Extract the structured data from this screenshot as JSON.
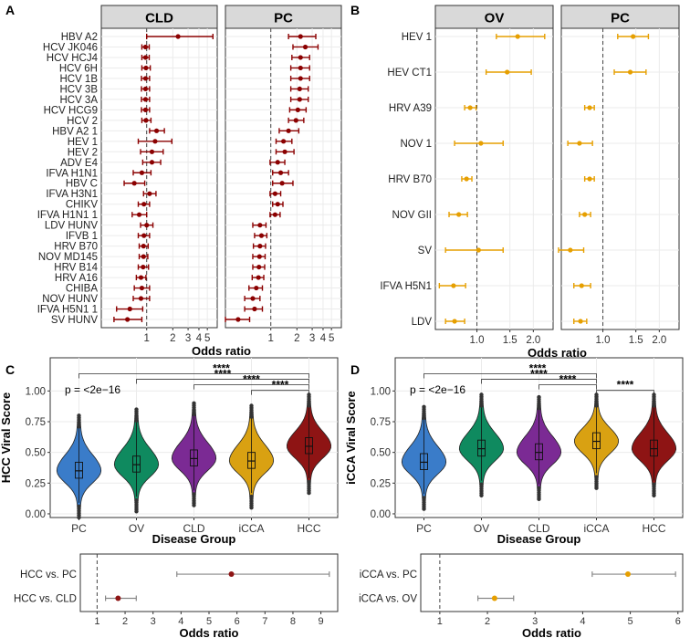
{
  "panel_labels": {
    "A": "A",
    "B": "B",
    "C": "C",
    "D": "D"
  },
  "colors": {
    "dark_red": "#8B0000",
    "orange": "#E69F00",
    "pc_blue": "#3A7CC9",
    "ov_green": "#0F8A5F",
    "cld_purple": "#7B2A94",
    "icca_orange": "#D9A112",
    "hcc_red": "#8E1414"
  },
  "chart_data": [
    {
      "id": "A",
      "type": "scatter",
      "subtype": "forest",
      "xlabel": "Odds ratio",
      "xscale": "log",
      "xlim": [
        0.3,
        6.5
      ],
      "xticks": [
        1,
        2,
        3,
        4,
        5
      ],
      "reference": 1,
      "labels": [
        "HBV A2",
        "HCV JK046",
        "HCV HCJ4",
        "HCV 6H",
        "HCV 1B",
        "HCV 3B",
        "HCV 3A",
        "HCV HCG9",
        "HCV 2",
        "HBV A2 1",
        "HEV 1",
        "HEV 2",
        "ADV E4",
        "IFVA H1N1",
        "HBV C",
        "IFVA H3N1",
        "CHIKV",
        "IFVA H1N1 1",
        "LDV HUNV",
        "IFVB 1",
        "HRV B70",
        "NOV MD145",
        "HRV B14",
        "HRV A16",
        "CHIBA",
        "NOV HUNV",
        "IFVA H5N1 1",
        "SV HUNV"
      ],
      "facets": [
        {
          "name": "CLD",
          "or": [
            2.3,
            0.97,
            0.97,
            0.98,
            0.97,
            0.97,
            0.97,
            0.97,
            0.98,
            1.3,
            1.25,
            1.15,
            1.15,
            0.88,
            0.72,
            1.08,
            0.93,
            0.82,
            1.0,
            0.93,
            0.92,
            0.92,
            0.91,
            0.86,
            0.88,
            0.86,
            0.64,
            0.6
          ],
          "lo": [
            1.0,
            0.88,
            0.88,
            0.88,
            0.87,
            0.87,
            0.87,
            0.87,
            0.88,
            1.08,
            0.8,
            0.85,
            0.9,
            0.7,
            0.55,
            0.92,
            0.8,
            0.68,
            0.85,
            0.8,
            0.82,
            0.82,
            0.8,
            0.76,
            0.72,
            0.7,
            0.45,
            0.42
          ],
          "hi": [
            5.8,
            1.07,
            1.07,
            1.1,
            1.08,
            1.08,
            1.08,
            1.08,
            1.12,
            1.6,
            1.95,
            1.55,
            1.45,
            1.12,
            0.95,
            1.28,
            1.08,
            1.0,
            1.18,
            1.08,
            1.04,
            1.03,
            1.05,
            0.98,
            1.08,
            1.08,
            0.9,
            0.88
          ]
        },
        {
          "name": "PC",
          "or": [
            2.2,
            2.5,
            2.2,
            2.2,
            2.2,
            2.15,
            2.15,
            2.05,
            1.95,
            1.6,
            1.4,
            1.45,
            1.2,
            1.3,
            1.35,
            1.12,
            1.2,
            1.12,
            0.75,
            0.78,
            0.75,
            0.74,
            0.73,
            0.72,
            0.68,
            0.62,
            0.65,
            0.42
          ],
          "lo": [
            1.6,
            1.8,
            1.75,
            1.7,
            1.7,
            1.7,
            1.7,
            1.65,
            1.6,
            1.25,
            1.15,
            1.15,
            0.98,
            1.05,
            1.05,
            0.98,
            1.05,
            0.98,
            0.62,
            0.65,
            0.63,
            0.62,
            0.62,
            0.61,
            0.56,
            0.5,
            0.5,
            0.3
          ],
          "hi": [
            3.3,
            3.5,
            2.8,
            2.8,
            2.8,
            2.7,
            2.7,
            2.55,
            2.4,
            2.1,
            1.75,
            1.85,
            1.45,
            1.6,
            1.8,
            1.3,
            1.38,
            1.28,
            0.88,
            0.9,
            0.87,
            0.86,
            0.85,
            0.83,
            0.8,
            0.75,
            0.8,
            0.57
          ]
        }
      ]
    },
    {
      "id": "B",
      "type": "scatter",
      "subtype": "forest",
      "xlabel": "Odds ratio",
      "xscale": "log",
      "xlim": [
        0.6,
        2.55
      ],
      "xticks": [
        1.0,
        1.5,
        2.0
      ],
      "xtick_labels": [
        "1.0",
        "1.5",
        "2.0"
      ],
      "reference": 1,
      "labels": [
        "HEV 1",
        "HEV CT1",
        "HRV A39",
        "NOV 1",
        "HRV B70",
        "NOV GII",
        "SV",
        "IFVA H5N1",
        "LDV"
      ],
      "facets": [
        {
          "name": "OV",
          "or": [
            1.65,
            1.45,
            0.92,
            1.05,
            0.88,
            0.8,
            1.02,
            0.75,
            0.76
          ],
          "lo": [
            1.27,
            1.12,
            0.86,
            0.76,
            0.83,
            0.71,
            0.68,
            0.63,
            0.68
          ],
          "hi": [
            2.3,
            1.95,
            0.99,
            1.38,
            0.94,
            0.89,
            1.38,
            0.87,
            0.86
          ]
        },
        {
          "name": "PC",
          "or": [
            1.45,
            1.4,
            0.85,
            0.75,
            0.85,
            0.8,
            0.67,
            0.77,
            0.76
          ],
          "lo": [
            1.2,
            1.15,
            0.8,
            0.65,
            0.8,
            0.75,
            0.58,
            0.7,
            0.7
          ],
          "hi": [
            1.75,
            1.7,
            0.9,
            0.88,
            0.9,
            0.86,
            0.79,
            0.86,
            0.82
          ]
        }
      ]
    },
    {
      "id": "C",
      "type": "violin",
      "title": "",
      "xlabel": "Disease Group",
      "ylabel": "HCC Viral Score",
      "ylim": [
        -0.03,
        1.27
      ],
      "yticks": [
        0.0,
        0.25,
        0.5,
        0.75,
        1.0
      ],
      "ytick_labels": [
        "0.00",
        "0.25",
        "0.50",
        "0.75",
        "1.00"
      ],
      "categories": [
        "PC",
        "OV",
        "CLD",
        "iCCA",
        "HCC"
      ],
      "medians": [
        0.35,
        0.4,
        0.45,
        0.43,
        0.55
      ],
      "annotation": "p = <2e−16",
      "significance_label": "****",
      "comparisons": [
        [
          "PC",
          "HCC"
        ],
        [
          "OV",
          "HCC"
        ],
        [
          "CLD",
          "HCC"
        ],
        [
          "iCCA",
          "HCC"
        ]
      ]
    },
    {
      "id": "D",
      "type": "violin",
      "xlabel": "Disease Group",
      "ylabel": "iCCA Viral Score",
      "ylim": [
        -0.03,
        1.27
      ],
      "yticks": [
        0.0,
        0.25,
        0.5,
        0.75,
        1.0
      ],
      "ytick_labels": [
        "0.00",
        "0.25",
        "0.50",
        "0.75",
        "1.00"
      ],
      "categories": [
        "PC",
        "OV",
        "CLD",
        "iCCA",
        "HCC"
      ],
      "medians": [
        0.42,
        0.53,
        0.5,
        0.59,
        0.53
      ],
      "annotation": "p = <2e−16",
      "significance_label": "****",
      "comparisons": [
        [
          "PC",
          "iCCA"
        ],
        [
          "OV",
          "iCCA"
        ],
        [
          "CLD",
          "iCCA"
        ],
        [
          "iCCA",
          "HCC"
        ]
      ]
    },
    {
      "id": "C2",
      "type": "scatter",
      "subtype": "forest",
      "xlabel": "Odds ratio",
      "xlim": [
        0.4,
        9.6
      ],
      "xticks": [
        1,
        2,
        3,
        4,
        5,
        6,
        7,
        8,
        9
      ],
      "reference": 1,
      "labels": [
        "HCC vs. PC",
        "HCC vs. CLD"
      ],
      "or": [
        5.8,
        1.75
      ],
      "lo": [
        3.85,
        1.3
      ],
      "hi": [
        9.3,
        2.4
      ]
    },
    {
      "id": "D2",
      "type": "scatter",
      "subtype": "forest",
      "xlabel": "Odds ratio",
      "xlim": [
        0.6,
        6.1
      ],
      "xticks": [
        1,
        2,
        3,
        4,
        5,
        6
      ],
      "reference": 1,
      "labels": [
        "iCCA vs. PC",
        "iCCA vs. OV"
      ],
      "or": [
        4.95,
        2.15
      ],
      "lo": [
        4.2,
        1.8
      ],
      "hi": [
        5.95,
        2.55
      ]
    }
  ]
}
